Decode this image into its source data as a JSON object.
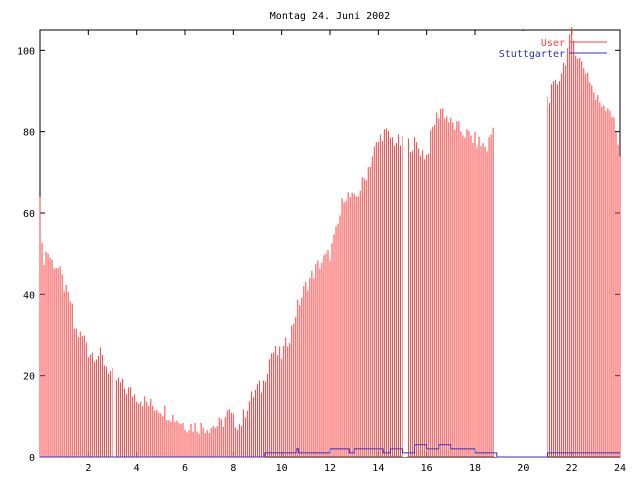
{
  "chart_data": {
    "type": "bar",
    "title": "Montag 24. Juni 2002",
    "xlabel": "",
    "ylabel": "",
    "xlim": [
      0,
      24
    ],
    "ylim": [
      0,
      105
    ],
    "x_ticks": [
      2,
      4,
      6,
      8,
      10,
      12,
      14,
      16,
      18,
      20,
      22,
      24
    ],
    "x_tick_labels": [
      "2",
      "4",
      "6",
      "8",
      "10",
      "12",
      "14",
      "16",
      "18",
      "20",
      "22",
      "24"
    ],
    "y_ticks": [
      0,
      20,
      40,
      60,
      80,
      100
    ],
    "y_tick_labels": [
      "0",
      "20",
      "40",
      "60",
      "80",
      "100"
    ],
    "grid": false,
    "legend_position": "top-right",
    "colors": {
      "User": "#ff4040",
      "Stuttgarter": "#3030c0",
      "axis": "#000000"
    },
    "series": [
      {
        "name": "User",
        "style": "impulses",
        "keypoints": [
          [
            0.0,
            66
          ],
          [
            0.1,
            48
          ],
          [
            0.3,
            51
          ],
          [
            0.5,
            48
          ],
          [
            0.7,
            47
          ],
          [
            0.9,
            44
          ],
          [
            1.1,
            40
          ],
          [
            1.3,
            38
          ],
          [
            1.4,
            32
          ],
          [
            1.6,
            30
          ],
          [
            1.9,
            29
          ],
          [
            2.0,
            26
          ],
          [
            2.5,
            25
          ],
          [
            2.8,
            22
          ],
          [
            3.0,
            20
          ],
          [
            3.5,
            17
          ],
          [
            4.0,
            15
          ],
          [
            4.5,
            13
          ],
          [
            5.0,
            12
          ],
          [
            5.5,
            10
          ],
          [
            6.0,
            8
          ],
          [
            6.5,
            7.5
          ],
          [
            7.0,
            7.5
          ],
          [
            7.5,
            8
          ],
          [
            7.8,
            11
          ],
          [
            8.0,
            9
          ],
          [
            8.3,
            8
          ],
          [
            8.6,
            13
          ],
          [
            9.0,
            17
          ],
          [
            9.2,
            17
          ],
          [
            9.4,
            22
          ],
          [
            9.6,
            26
          ],
          [
            10.0,
            25
          ],
          [
            10.4,
            31
          ],
          [
            10.6,
            36
          ],
          [
            11.0,
            42
          ],
          [
            11.5,
            47
          ],
          [
            12.0,
            50
          ],
          [
            12.3,
            56
          ],
          [
            12.6,
            65
          ],
          [
            13.0,
            63
          ],
          [
            13.4,
            68
          ],
          [
            13.8,
            75
          ],
          [
            14.2,
            80
          ],
          [
            14.6,
            78
          ],
          [
            15.0,
            77
          ],
          [
            15.5,
            77
          ],
          [
            16.0,
            74
          ],
          [
            16.3,
            82
          ],
          [
            16.6,
            86
          ],
          [
            17.0,
            82
          ],
          [
            17.5,
            80
          ],
          [
            18.0,
            78
          ],
          [
            18.5,
            76
          ],
          [
            18.8,
            82
          ],
          [
            19.0,
            86
          ],
          [
            19.5,
            82
          ],
          [
            20.0,
            80
          ],
          [
            20.3,
            84
          ],
          [
            20.6,
            78
          ],
          [
            21.0,
            88
          ],
          [
            21.4,
            92
          ],
          [
            21.7,
            97
          ],
          [
            22.0,
            104
          ],
          [
            22.3,
            98
          ],
          [
            22.7,
            94
          ],
          [
            23.0,
            88
          ],
          [
            23.3,
            87
          ],
          [
            23.6,
            86
          ],
          [
            23.9,
            78
          ],
          [
            24.0,
            75
          ]
        ],
        "gaps": [
          [
            3.0,
            3.1
          ],
          [
            15.0,
            15.2
          ],
          [
            18.8,
            21.0
          ]
        ]
      },
      {
        "name": "Stuttgarter",
        "style": "steps",
        "points": [
          [
            0.0,
            0
          ],
          [
            9.3,
            0
          ],
          [
            9.3,
            1
          ],
          [
            10.6,
            1
          ],
          [
            10.6,
            2
          ],
          [
            10.7,
            2
          ],
          [
            10.7,
            1
          ],
          [
            12.0,
            1
          ],
          [
            12.0,
            2
          ],
          [
            12.8,
            2
          ],
          [
            12.8,
            1
          ],
          [
            13.0,
            1
          ],
          [
            13.0,
            2
          ],
          [
            14.2,
            2
          ],
          [
            14.2,
            1
          ],
          [
            14.5,
            1
          ],
          [
            14.5,
            2
          ],
          [
            15.0,
            2
          ],
          [
            15.0,
            1
          ],
          [
            15.5,
            1
          ],
          [
            15.5,
            3
          ],
          [
            16.0,
            3
          ],
          [
            16.0,
            2
          ],
          [
            16.5,
            2
          ],
          [
            16.5,
            3
          ],
          [
            17.0,
            3
          ],
          [
            17.0,
            2
          ],
          [
            18.0,
            2
          ],
          [
            18.0,
            1
          ],
          [
            18.9,
            1
          ],
          [
            18.9,
            0
          ],
          [
            21.0,
            0
          ],
          [
            21.0,
            1
          ],
          [
            24.0,
            1
          ]
        ]
      }
    ]
  }
}
